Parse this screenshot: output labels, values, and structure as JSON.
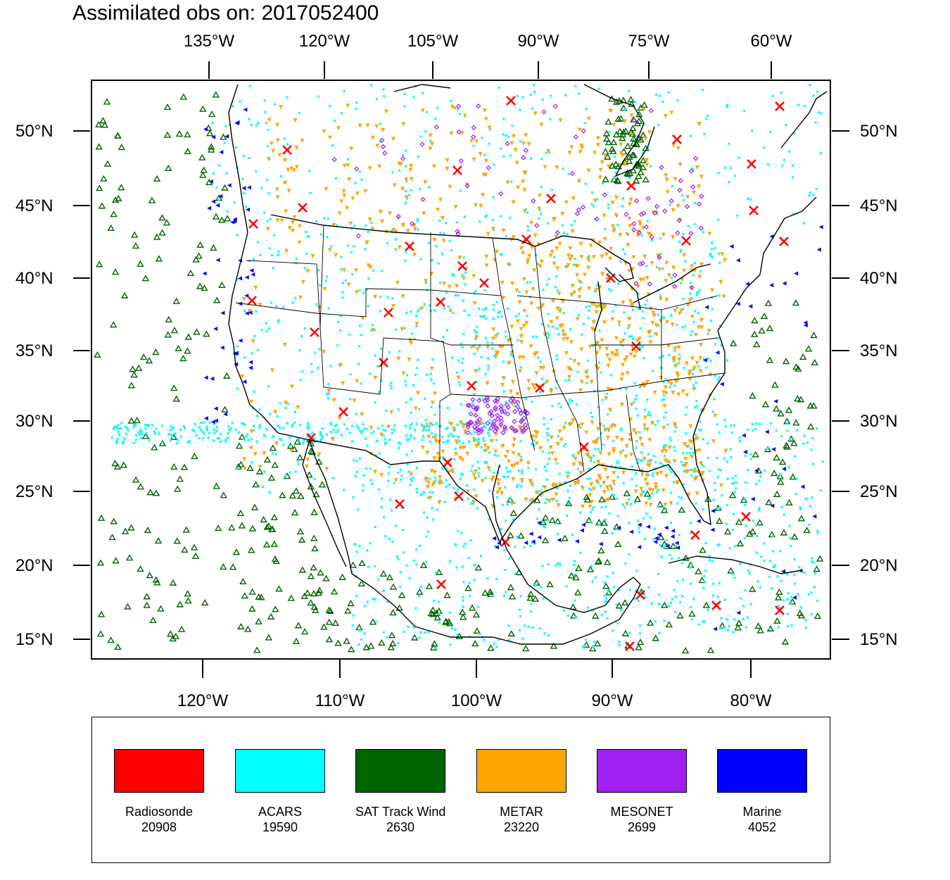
{
  "title": "Assimilated obs on: 2017052400",
  "top_axis": [
    "135°W",
    "120°W",
    "105°W",
    "90°W",
    "75°W",
    "60°W"
  ],
  "bottom_axis": [
    "120°W",
    "110°W",
    "100°W",
    "90°W",
    "80°W"
  ],
  "lat_axis": [
    "50°N",
    "45°N",
    "40°N",
    "35°N",
    "30°N",
    "25°N",
    "20°N",
    "15°N"
  ],
  "legend": [
    {
      "label": "Radiosonde",
      "count": "20908",
      "color": "#ff0000",
      "symbol": "x-mark"
    },
    {
      "label": "ACARS",
      "count": "19590",
      "color": "#00ffff",
      "symbol": "square-dot"
    },
    {
      "label": "SAT Track Wind",
      "count": "2630",
      "color": "#006400",
      "symbol": "triangle-open"
    },
    {
      "label": "METAR",
      "count": "23220",
      "color": "#ffa500",
      "symbol": "triangle-down"
    },
    {
      "label": "MESONET",
      "count": "2699",
      "color": "#a020f0",
      "symbol": "diamond"
    },
    {
      "label": "Marine",
      "count": "4052",
      "color": "#0000ff",
      "symbol": "triangle-left"
    }
  ]
}
